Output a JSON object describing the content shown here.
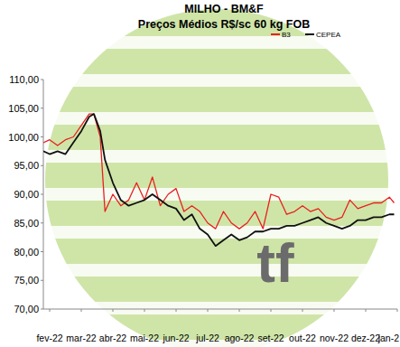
{
  "chart_data": {
    "type": "line",
    "title": "MILHO - BM&F",
    "subtitle": "Preços Médios R$/sc 60 kg FOB",
    "annotations": [
      "tf"
    ],
    "x": [
      -0.2,
      0,
      0.25,
      0.5,
      0.75,
      1.0,
      1.25,
      1.4,
      1.6,
      1.75,
      2.0,
      2.25,
      2.5,
      2.75,
      3.0,
      3.25,
      3.5,
      3.75,
      4.0,
      4.25,
      4.5,
      4.75,
      5.0,
      5.25,
      5.5,
      5.75,
      6.0,
      6.25,
      6.5,
      6.75,
      7.0,
      7.25,
      7.5,
      7.75,
      8.0,
      8.25,
      8.5,
      8.75,
      9.0,
      9.25,
      9.5,
      9.75,
      10.0,
      10.25,
      10.5,
      10.75,
      10.9
    ],
    "series": [
      {
        "name": "B3",
        "color": "#e8201f",
        "values": [
          99,
          99.5,
          98.5,
          99.5,
          100,
          102,
          104,
          104,
          100,
          87,
          90,
          88,
          89,
          92,
          89,
          93,
          88,
          90,
          91,
          87,
          88,
          87,
          85,
          84,
          87,
          85,
          84,
          85,
          87,
          84,
          90,
          89.5,
          86.5,
          87,
          88,
          87,
          87.5,
          86,
          85.5,
          86,
          89,
          87.5,
          88,
          88.5,
          88.5,
          89.5,
          88.5
        ]
      },
      {
        "name": "CEPEA",
        "color": "#111111",
        "values": [
          97.5,
          97,
          97.5,
          97,
          99,
          101,
          103.5,
          104,
          101,
          96,
          92,
          89,
          88,
          88.5,
          89,
          90,
          89,
          88,
          87.5,
          85.5,
          86.5,
          84,
          83,
          81,
          82,
          83,
          82,
          82.5,
          83.5,
          83.5,
          84,
          84,
          84.5,
          84.5,
          85,
          85.5,
          86,
          85,
          84.5,
          84,
          84.5,
          85.5,
          85.5,
          86,
          86,
          86.5,
          86.5
        ]
      }
    ],
    "xlim": [
      -0.2,
      11
    ],
    "xticks": [
      {
        "value": 0,
        "label": "fev-22"
      },
      {
        "value": 1,
        "label": "mar-22"
      },
      {
        "value": 2,
        "label": "abr-22"
      },
      {
        "value": 3,
        "label": "mai-22"
      },
      {
        "value": 4,
        "label": "jun-22"
      },
      {
        "value": 5,
        "label": "jul-22"
      },
      {
        "value": 6,
        "label": "ago-22"
      },
      {
        "value": 7,
        "label": "set-22"
      },
      {
        "value": 8,
        "label": "out-22"
      },
      {
        "value": 9,
        "label": "nov-22"
      },
      {
        "value": 10,
        "label": "dez-22"
      },
      {
        "value": 11,
        "label": "jan-2"
      }
    ],
    "ylim": [
      70,
      110
    ],
    "yticks": [
      {
        "value": 70,
        "label": "70,00"
      },
      {
        "value": 75,
        "label": "75,00"
      },
      {
        "value": 80,
        "label": "80,00"
      },
      {
        "value": 85,
        "label": "85,00"
      },
      {
        "value": 90,
        "label": "90,00"
      },
      {
        "value": 95,
        "label": "95,00"
      },
      {
        "value": 100,
        "label": "100,00"
      },
      {
        "value": 105,
        "label": "105,00"
      },
      {
        "value": 110,
        "label": "110,00"
      }
    ],
    "grid": false,
    "legend": "top-right"
  }
}
